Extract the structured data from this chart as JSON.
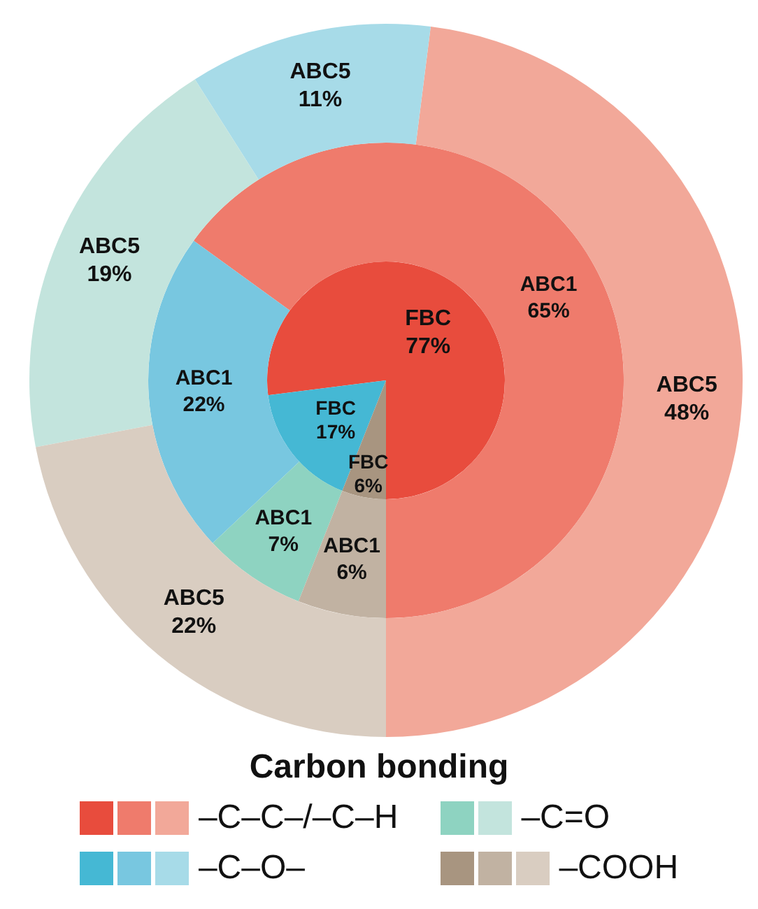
{
  "chart_data": {
    "type": "donut",
    "legend_title": "Carbon bonding",
    "categories": [
      "–C–C–/–C–H",
      "–C–O–",
      "–C=O",
      "–COOH"
    ],
    "series": [
      {
        "name": "FBC",
        "values": [
          77,
          17,
          null,
          6
        ],
        "value_labels": [
          "77%",
          "17%",
          null,
          "6%"
        ],
        "colors": [
          "#e84c3d",
          "#45b8d4",
          null,
          "#a89580"
        ]
      },
      {
        "name": "ABC1",
        "values": [
          65,
          22,
          7,
          6
        ],
        "value_labels": [
          "65%",
          "22%",
          "7%",
          "6%"
        ],
        "colors": [
          "#ef7b6c",
          "#78c7e0",
          "#8ed3c1",
          "#c1b2a2"
        ]
      },
      {
        "name": "ABC5",
        "values": [
          48,
          11,
          19,
          22
        ],
        "value_labels": [
          "48%",
          "11%",
          "19%",
          "22%"
        ],
        "colors": [
          "#f2a899",
          "#a7dbe8",
          "#c3e4dd",
          "#d9cdc1"
        ]
      }
    ],
    "legend": "bottom"
  }
}
